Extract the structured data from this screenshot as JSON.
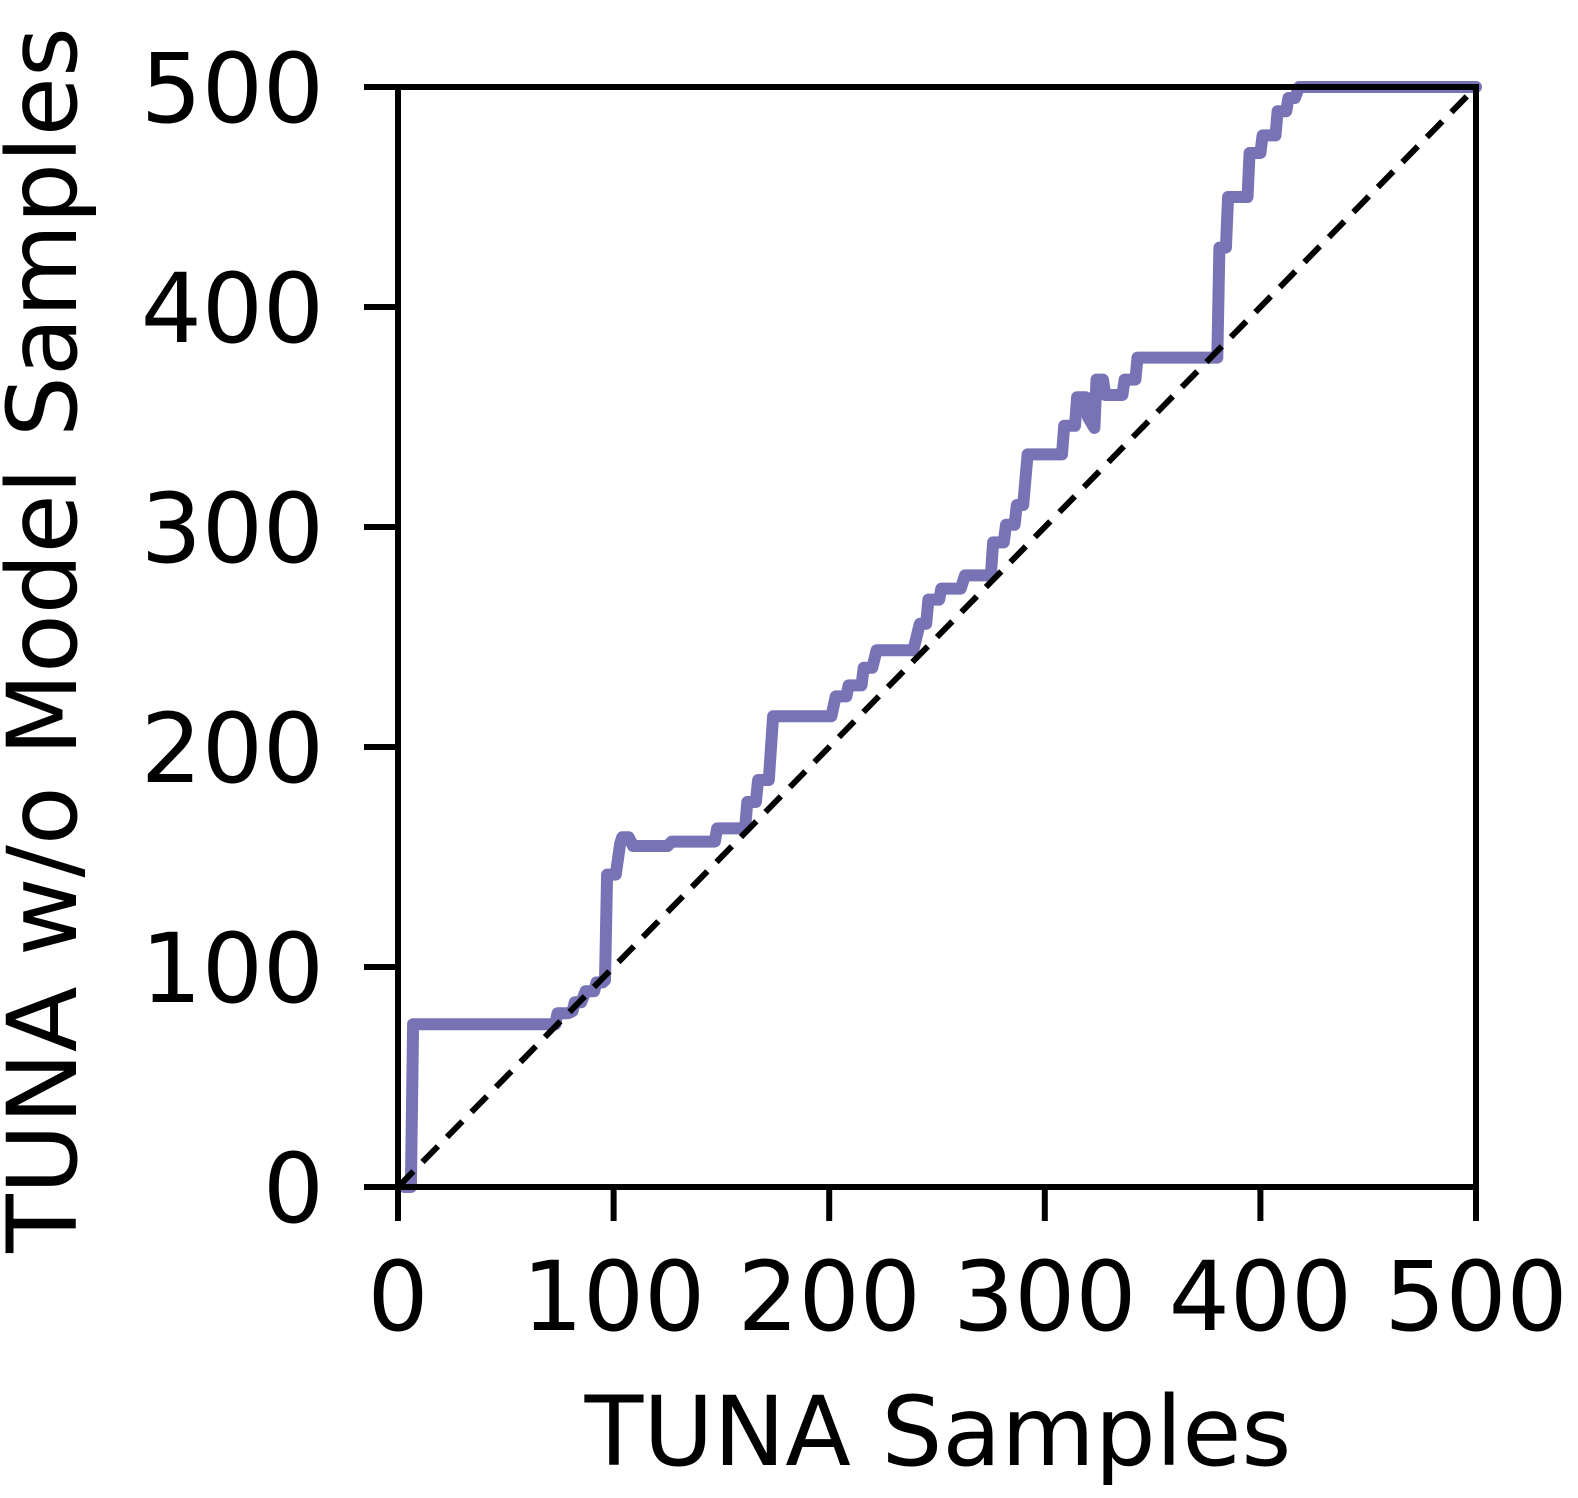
{
  "chart_data": {
    "type": "line",
    "title": "",
    "xlabel": "TUNA Samples",
    "ylabel": "TUNA w/o Model Samples",
    "xlim": [
      0,
      500
    ],
    "ylim": [
      0,
      500
    ],
    "xticks": [
      0,
      100,
      200,
      300,
      400,
      500
    ],
    "yticks": [
      0,
      100,
      200,
      300,
      400,
      500
    ],
    "xtick_labels": [
      "0",
      "100",
      "200",
      "300",
      "400",
      "500"
    ],
    "ytick_labels": [
      "0",
      "100",
      "200",
      "300",
      "400",
      "500"
    ],
    "grid": false,
    "legend": "none",
    "series": [
      {
        "style": "solid",
        "color": "#7773b5",
        "points": [
          [
            3,
            0
          ],
          [
            6,
            0
          ],
          [
            7,
            74
          ],
          [
            70,
            74
          ],
          [
            73,
            74
          ],
          [
            74,
            79
          ],
          [
            79,
            79
          ],
          [
            81,
            80
          ],
          [
            82,
            84
          ],
          [
            85,
            84
          ],
          [
            87,
            89
          ],
          [
            91,
            89
          ],
          [
            92,
            93
          ],
          [
            95,
            93
          ],
          [
            96,
            94
          ],
          [
            97,
            142
          ],
          [
            101,
            142
          ],
          [
            103,
            156
          ],
          [
            104,
            159
          ],
          [
            107,
            159
          ],
          [
            109,
            155
          ],
          [
            125,
            155
          ],
          [
            127,
            157
          ],
          [
            147,
            157
          ],
          [
            148,
            163
          ],
          [
            161,
            163
          ],
          [
            162,
            175
          ],
          [
            166,
            175
          ],
          [
            167,
            185
          ],
          [
            172,
            185
          ],
          [
            174,
            214
          ],
          [
            201,
            214
          ],
          [
            203,
            223
          ],
          [
            208,
            223
          ],
          [
            209,
            228
          ],
          [
            215,
            228
          ],
          [
            216,
            236
          ],
          [
            220,
            236
          ],
          [
            222,
            244
          ],
          [
            239,
            244
          ],
          [
            242,
            256
          ],
          [
            245,
            256
          ],
          [
            246,
            267
          ],
          [
            251,
            267
          ],
          [
            252,
            272
          ],
          [
            261,
            272
          ],
          [
            263,
            278
          ],
          [
            275,
            278
          ],
          [
            276,
            293
          ],
          [
            281,
            293
          ],
          [
            282,
            301
          ],
          [
            286,
            301
          ],
          [
            287,
            310
          ],
          [
            290,
            310
          ],
          [
            292,
            333
          ],
          [
            308,
            333
          ],
          [
            309,
            346
          ],
          [
            314,
            346
          ],
          [
            315,
            359
          ],
          [
            319,
            359
          ],
          [
            320,
            350
          ],
          [
            323,
            345
          ],
          [
            324,
            367
          ],
          [
            327,
            367
          ],
          [
            328,
            360
          ],
          [
            336,
            360
          ],
          [
            337,
            367
          ],
          [
            342,
            367
          ],
          [
            343,
            377
          ],
          [
            361,
            377
          ],
          [
            364,
            377
          ],
          [
            380,
            377
          ],
          [
            381,
            427
          ],
          [
            384,
            427
          ],
          [
            385,
            450
          ],
          [
            394,
            450
          ],
          [
            395,
            470
          ],
          [
            400,
            470
          ],
          [
            401,
            478
          ],
          [
            407,
            478
          ],
          [
            408,
            489
          ],
          [
            412,
            489
          ],
          [
            413,
            495
          ],
          [
            416,
            495
          ],
          [
            418,
            500
          ],
          [
            500,
            500
          ]
        ]
      },
      {
        "style": "dashed",
        "color": "#000000",
        "points": [
          [
            0,
            0
          ],
          [
            500,
            500
          ]
        ]
      }
    ]
  }
}
